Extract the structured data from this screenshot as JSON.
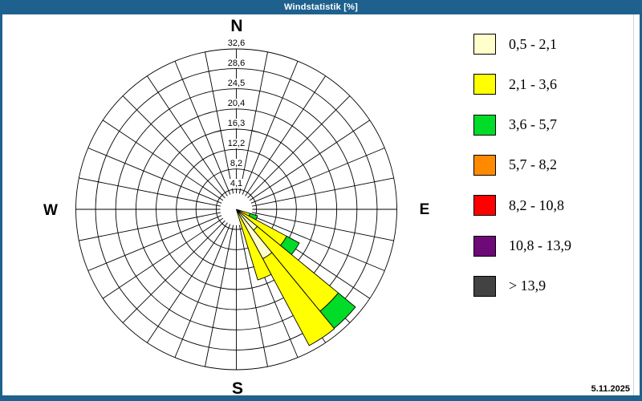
{
  "window": {
    "title": "Windstatistik [%]"
  },
  "footer": {
    "date": "5.11.2025"
  },
  "chart_data": {
    "type": "wind-rose stacked polar bar",
    "title": "Windstatistik [%]",
    "units": "%",
    "grid": {
      "sectors_total": 32,
      "sector_width_deg": 11.25,
      "rings_on": true
    },
    "compass": {
      "n": "N",
      "e": "E",
      "s": "S",
      "w": "W"
    },
    "ring_ticks": [
      "4,1",
      "8,2",
      "12,2",
      "16,3",
      "20,4",
      "24,5",
      "28,6",
      "32,6"
    ],
    "ring_values": [
      4.1,
      8.2,
      12.2,
      16.3,
      20.4,
      24.5,
      28.6,
      32.6
    ],
    "axis_max": 32.6,
    "legend": [
      {
        "label": "0,5 - 2,1",
        "color": "#FFFFCC"
      },
      {
        "label": "2,1 - 3,6",
        "color": "#FFFF00"
      },
      {
        "label": "3,6 - 5,7",
        "color": "#00DC28"
      },
      {
        "label": "5,7 - 8,2",
        "color": "#FF8A00"
      },
      {
        "label": "8,2 - 10,8",
        "color": "#FF0000"
      },
      {
        "label": "10,8 - 13,9",
        "color": "#6E0A78"
      },
      {
        "label": "> 13,9",
        "color": "#424242"
      }
    ],
    "sectors": [
      {
        "direction_deg": 112.5,
        "segments": [
          {
            "class": "2,1 - 3,6",
            "color": "#FFFF00",
            "from": 0,
            "to": 2.9
          },
          {
            "class": "3,6 - 5,7",
            "color": "#00DC28",
            "from": 2.9,
            "to": 4.5
          }
        ]
      },
      {
        "direction_deg": 123.75,
        "segments": [
          {
            "class": "2,1 - 3,6",
            "color": "#FFFF00",
            "from": 0,
            "to": 11.6
          },
          {
            "class": "3,6 - 5,7",
            "color": "#00DC28",
            "from": 11.6,
            "to": 14.5
          }
        ]
      },
      {
        "direction_deg": 135,
        "segments": [
          {
            "class": "0,5 - 2,1",
            "color": "#FFFFCC",
            "from": 0,
            "to": 5.5
          },
          {
            "class": "2,1 - 3,6",
            "color": "#FFFF00",
            "from": 5.5,
            "to": 26.8
          },
          {
            "class": "3,6 - 5,7",
            "color": "#00DC28",
            "from": 26.8,
            "to": 31.3
          }
        ]
      },
      {
        "direction_deg": 146.25,
        "segments": [
          {
            "class": "0,5 - 2,1",
            "color": "#FFFFCC",
            "from": 0,
            "to": 11.4
          },
          {
            "class": "2,1 - 3,6",
            "color": "#FFFF00",
            "from": 11.4,
            "to": 31.4
          }
        ]
      },
      {
        "direction_deg": 157.5,
        "segments": [
          {
            "class": "2,1 - 3,6",
            "color": "#FFFF00",
            "from": 0,
            "to": 15.0
          }
        ]
      }
    ]
  }
}
